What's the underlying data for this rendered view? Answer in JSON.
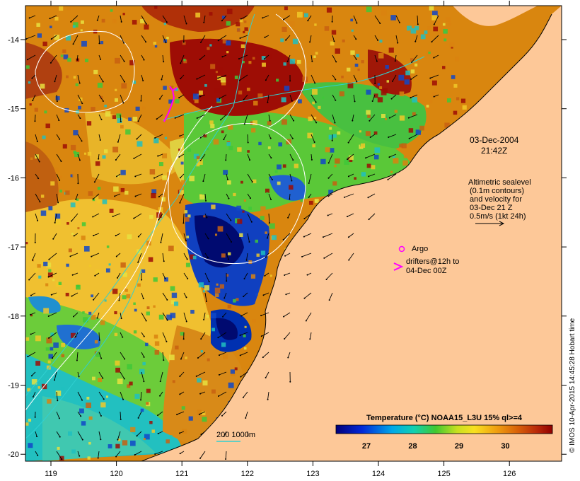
{
  "map": {
    "date_line1": "03-Dec-2004",
    "date_line2": "21:42Z",
    "alt_line1": "Altimetric sealevel",
    "alt_line2": "(0.1m contours)",
    "alt_line3": "and velocity for",
    "alt_line4": "03-Dec 21 Z",
    "alt_line5": "0.5m/s (1kt 24h)",
    "argo_label": "Argo",
    "drifters_line1": "drifters@12h to",
    "drifters_line2": "04-Dec 00Z",
    "depth_label": "200  1000m",
    "credit": "© IMOS 10-Apr-2015 14:45:28 Hobart time",
    "colorbar_title": "Temperature (°C) NOAA15_L3U 15% ql>=4",
    "colorbar_ticks": [
      "27",
      "28",
      "29",
      "30"
    ],
    "lon_ticks": [
      "119",
      "120",
      "121",
      "122",
      "123",
      "124",
      "125",
      "126"
    ],
    "lat_ticks": [
      "-14",
      "-15",
      "-16",
      "-17",
      "-18",
      "-19",
      "-20"
    ],
    "colors": {
      "land": "#fdc898",
      "dark_red": "#9e0d05",
      "orange": "#d9820f",
      "yellow": "#f0c828",
      "green": "#58c838",
      "cyan": "#20c8c8",
      "blue": "#1048c8",
      "navy": "#000a6e",
      "magenta": "#ff00ff"
    }
  }
}
